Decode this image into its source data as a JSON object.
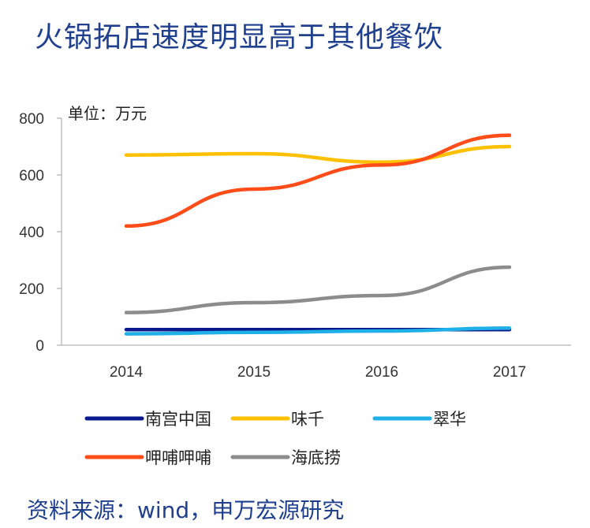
{
  "chart_data": {
    "type": "line",
    "title": "火锅拓店速度明显高于其他餐饮",
    "unit_label": "单位：万元",
    "source": "资料来源：wind，申万宏源研究",
    "x": [
      "2014",
      "2015",
      "2016",
      "2017"
    ],
    "ylim": [
      0,
      800
    ],
    "yticks": [
      0,
      200,
      400,
      600,
      800
    ],
    "grid": false,
    "legend_position": "bottom",
    "series": [
      {
        "name": "南宫中国",
        "color": "#0a1a8c",
        "values": [
          55,
          55,
          55,
          55
        ]
      },
      {
        "name": "味千",
        "color": "#ffc000",
        "values": [
          670,
          675,
          645,
          700
        ]
      },
      {
        "name": "翠华",
        "color": "#1fb0e8",
        "values": [
          40,
          45,
          50,
          60
        ]
      },
      {
        "name": "呷哺呷哺",
        "color": "#ff4d1a",
        "values": [
          420,
          550,
          635,
          740
        ]
      },
      {
        "name": "海底捞",
        "color": "#8c8c8c",
        "values": [
          115,
          150,
          175,
          275
        ]
      }
    ]
  }
}
